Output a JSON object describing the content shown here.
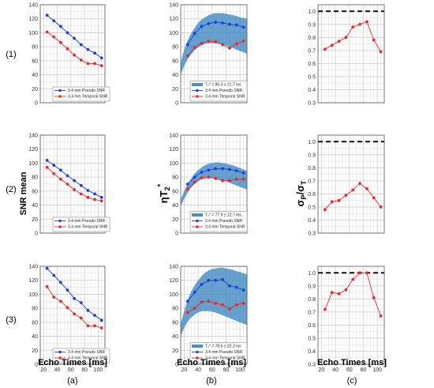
{
  "figure": {
    "row_labels": [
      "(1)",
      "(2)",
      "(3)"
    ],
    "col_labels": [
      "(a)",
      "(b)",
      "(c)"
    ],
    "ylabel_a": "SNR mean",
    "ylabel_b": "ηT2*",
    "ylabel_c": "σp/σT",
    "xlabel": "Echo Times [ms]",
    "colors": {
      "pseudo": "#1f3fd6",
      "temporal": "#e8292b",
      "band": "#4b8fc4",
      "ref": "#111111"
    }
  },
  "chart_data": [
    {
      "panel": "a1",
      "type": "line",
      "x": [
        25,
        35,
        45,
        55,
        65,
        75,
        85,
        95,
        105
      ],
      "xlim": [
        15,
        110
      ],
      "xticks": [
        20,
        40,
        60,
        80,
        100
      ],
      "ylim": [
        0,
        140
      ],
      "yticks": [
        0,
        20,
        40,
        60,
        80,
        100,
        120,
        140
      ],
      "series": [
        {
          "name": "3.4 mm Pseudo SNR",
          "values": [
            125,
            117,
            109,
            100,
            92,
            83,
            76,
            71,
            64
          ]
        },
        {
          "name": "3.4 mm Temporal SNR",
          "values": [
            101,
            94,
            86,
            77,
            68,
            61,
            56,
            56,
            53
          ]
        }
      ]
    },
    {
      "panel": "b1",
      "type": "line",
      "x": [
        25,
        35,
        45,
        55,
        65,
        75,
        85,
        95,
        105
      ],
      "xlim": [
        15,
        110
      ],
      "xticks": [
        20,
        40,
        60,
        80,
        100
      ],
      "ylim": [
        0,
        140
      ],
      "yticks": [
        0,
        20,
        40,
        60,
        80,
        100,
        120,
        140
      ],
      "band_label": "T₂* = 86.3 ± 21.7 ms",
      "band": {
        "x": [
          15,
          20,
          25,
          30,
          35,
          40,
          45,
          50,
          55,
          60,
          65,
          70,
          75,
          80,
          85,
          90,
          95,
          100,
          105,
          110
        ],
        "upper": [
          58,
          76,
          89,
          99,
          107,
          114,
          119,
          122,
          125,
          127,
          128,
          128,
          128,
          127,
          126,
          125,
          124,
          122,
          121,
          120
        ],
        "lower": [
          40,
          53,
          62,
          69,
          75,
          79,
          82,
          84,
          85,
          85,
          85,
          84,
          83,
          82,
          80,
          78,
          76,
          74,
          72,
          70
        ]
      },
      "series": [
        {
          "name": "3.4 mm Pseudo SNR",
          "values": [
            83,
            99,
            109,
            113,
            115,
            114,
            112,
            111,
            108
          ]
        },
        {
          "name": "3.4 mm Temporal SNR",
          "values": [
            67,
            79,
            85,
            88,
            87,
            83,
            78,
            84,
            88
          ]
        }
      ]
    },
    {
      "panel": "c1",
      "type": "line",
      "x": [
        25,
        35,
        45,
        55,
        65,
        75,
        85,
        95,
        105
      ],
      "xlim": [
        15,
        110
      ],
      "xticks": [
        20,
        40,
        60,
        80,
        100
      ],
      "ylim": [
        0.3,
        1.05
      ],
      "yticks": [
        0.3,
        0.4,
        0.5,
        0.6,
        0.7,
        0.8,
        0.9,
        1.0
      ],
      "reference_line": 1.0,
      "series": [
        {
          "name": "σp/σT",
          "values": [
            0.71,
            0.74,
            0.77,
            0.8,
            0.88,
            0.9,
            0.92,
            0.78,
            0.69
          ]
        }
      ]
    },
    {
      "panel": "a2",
      "type": "line",
      "x": [
        25,
        35,
        45,
        55,
        65,
        75,
        85,
        95,
        105
      ],
      "xlim": [
        15,
        110
      ],
      "xticks": [
        20,
        40,
        60,
        80,
        100
      ],
      "ylim": [
        0,
        140
      ],
      "yticks": [
        0,
        20,
        40,
        60,
        80,
        100,
        120,
        140
      ],
      "series": [
        {
          "name": "3.4 mm Pseudo SNR",
          "values": [
            104,
            97,
            90,
            82,
            75,
            68,
            61,
            56,
            51
          ]
        },
        {
          "name": "3.4 mm Temporal SNR",
          "values": [
            94,
            85,
            77,
            70,
            62,
            56,
            51,
            48,
            46
          ]
        }
      ]
    },
    {
      "panel": "b2",
      "type": "line",
      "x": [
        25,
        35,
        45,
        55,
        65,
        75,
        85,
        95,
        105
      ],
      "xlim": [
        15,
        110
      ],
      "xticks": [
        20,
        40,
        60,
        80,
        100
      ],
      "ylim": [
        0,
        140
      ],
      "yticks": [
        0,
        20,
        40,
        60,
        80,
        100,
        120,
        140
      ],
      "band_label": "T₂* = 77.9 ± 12.7 ms",
      "band": {
        "x": [
          15,
          20,
          25,
          30,
          35,
          40,
          45,
          50,
          55,
          60,
          65,
          70,
          75,
          80,
          85,
          90,
          95,
          100,
          105,
          110
        ],
        "upper": [
          48,
          60,
          70,
          78,
          85,
          90,
          94,
          97,
          99,
          100,
          101,
          101,
          100,
          99,
          98,
          97,
          95,
          93,
          91,
          89
        ],
        "lower": [
          38,
          49,
          58,
          65,
          70,
          74,
          77,
          78,
          79,
          79,
          78,
          77,
          75,
          74,
          72,
          70,
          68,
          66,
          64,
          62
        ]
      },
      "series": [
        {
          "name": "3.4 mm Pseudo SNR",
          "values": [
            70,
            80,
            87,
            90,
            92,
            92,
            91,
            89,
            86
          ]
        },
        {
          "name": "3.4 mm Temporal SNR",
          "values": [
            63,
            73,
            79,
            80,
            78,
            75,
            75,
            77,
            77
          ]
        }
      ]
    },
    {
      "panel": "c2",
      "type": "line",
      "x": [
        25,
        35,
        45,
        55,
        65,
        75,
        85,
        95,
        105
      ],
      "xlim": [
        15,
        110
      ],
      "xticks": [
        20,
        40,
        60,
        80,
        100
      ],
      "ylim": [
        0.3,
        1.05
      ],
      "yticks": [
        0.3,
        0.4,
        0.5,
        0.6,
        0.7,
        0.8,
        0.9,
        1.0
      ],
      "reference_line": 1.0,
      "series": [
        {
          "name": "σp/σT",
          "values": [
            0.48,
            0.54,
            0.55,
            0.59,
            0.63,
            0.68,
            0.64,
            0.57,
            0.5
          ]
        }
      ]
    },
    {
      "panel": "a3",
      "type": "line",
      "x": [
        25,
        35,
        45,
        55,
        65,
        75,
        85,
        95,
        105
      ],
      "xlim": [
        15,
        110
      ],
      "xticks": [
        20,
        40,
        60,
        80,
        100
      ],
      "ylim": [
        0,
        140
      ],
      "yticks": [
        0,
        20,
        40,
        60,
        80,
        100,
        120,
        140
      ],
      "series": [
        {
          "name": "3.4 mm Pseudo SNR",
          "values": [
            137,
            127,
            117,
            106,
            94,
            88,
            77,
            70,
            63
          ]
        },
        {
          "name": "3.4 mm Temporal SNR",
          "values": [
            111,
            96,
            90,
            81,
            72,
            66,
            55,
            55,
            52
          ]
        }
      ]
    },
    {
      "panel": "b3",
      "type": "line",
      "x": [
        25,
        35,
        45,
        55,
        65,
        75,
        85,
        95,
        105
      ],
      "xlim": [
        15,
        110
      ],
      "xticks": [
        20,
        40,
        60,
        80,
        100
      ],
      "ylim": [
        0,
        140
      ],
      "yticks": [
        0,
        20,
        40,
        60,
        80,
        100,
        120,
        140
      ],
      "band_label": "T₂* = 78.6 ± 22.3 ms",
      "band": {
        "x": [
          15,
          20,
          25,
          30,
          35,
          40,
          45,
          50,
          55,
          60,
          65,
          70,
          75,
          80,
          85,
          90,
          95,
          100,
          105,
          110
        ],
        "upper": [
          58,
          76,
          92,
          104,
          113,
          120,
          126,
          131,
          134,
          136,
          137,
          138,
          138,
          137,
          136,
          135,
          133,
          132,
          130,
          128
        ],
        "lower": [
          40,
          52,
          61,
          67,
          71,
          74,
          76,
          76,
          76,
          75,
          74,
          72,
          70,
          68,
          66,
          64,
          62,
          60,
          58,
          56
        ]
      },
      "series": [
        {
          "name": "3.4 mm Pseudo SNR",
          "values": [
            90,
            103,
            114,
            120,
            120,
            121,
            112,
            110,
            106
          ]
        },
        {
          "name": "3.4 mm Temporal SNR",
          "values": [
            74,
            80,
            89,
            90,
            87,
            85,
            79,
            85,
            87
          ]
        }
      ]
    },
    {
      "panel": "c3",
      "type": "line",
      "x": [
        25,
        35,
        45,
        55,
        65,
        75,
        85,
        95,
        105
      ],
      "xlim": [
        15,
        110
      ],
      "xticks": [
        20,
        40,
        60,
        80,
        100
      ],
      "ylim": [
        0.3,
        1.05
      ],
      "yticks": [
        0.3,
        0.4,
        0.5,
        0.6,
        0.7,
        0.8,
        0.9,
        1.0
      ],
      "reference_line": 1.0,
      "series": [
        {
          "name": "σp/σT",
          "values": [
            0.72,
            0.85,
            0.84,
            0.87,
            0.95,
            1.0,
            1.0,
            0.81,
            0.67
          ]
        }
      ]
    }
  ]
}
